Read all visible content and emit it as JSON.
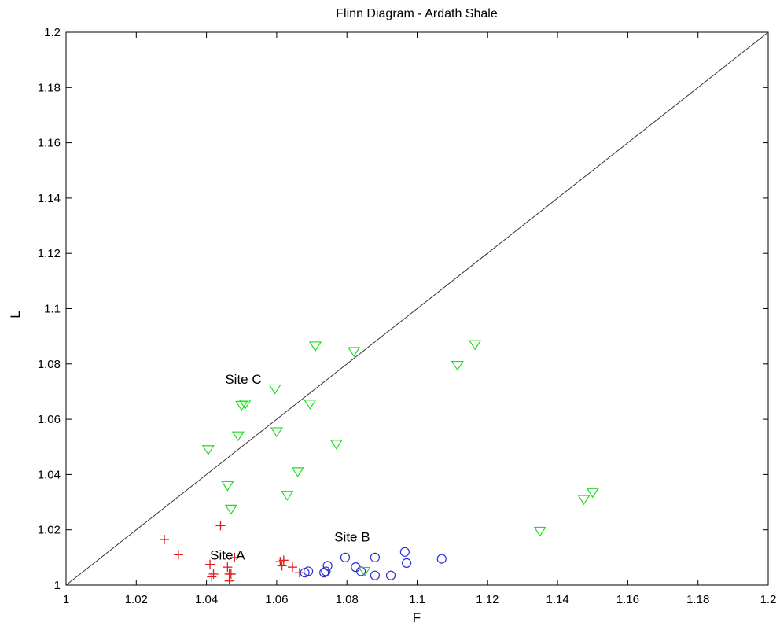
{
  "chart_data": {
    "type": "scatter",
    "title": "Flinn Diagram - Ardath Shale",
    "xlabel": "F",
    "ylabel": "L",
    "xlim": [
      1,
      1.2
    ],
    "ylim": [
      1,
      1.2
    ],
    "xticks": [
      "1",
      "1.02",
      "1.04",
      "1.06",
      "1.08",
      "1.1",
      "1.12",
      "1.14",
      "1.16",
      "1.18",
      "1.2"
    ],
    "yticks": [
      "1",
      "1.02",
      "1.04",
      "1.06",
      "1.08",
      "1.1",
      "1.12",
      "1.14",
      "1.16",
      "1.18",
      "1.2"
    ],
    "reference_line": {
      "x": [
        1,
        1.2
      ],
      "y": [
        1,
        1.2
      ],
      "color": "#333333"
    },
    "annotations": [
      {
        "text": "Site A",
        "x": 1.046,
        "y": 1.011
      },
      {
        "text": "Site B",
        "x": 1.0815,
        "y": 1.0175
      },
      {
        "text": "Site C",
        "x": 1.0505,
        "y": 1.0745
      }
    ],
    "series": [
      {
        "marker": "plus",
        "color": "#e8191b",
        "points": [
          [
            1.028,
            1.0165
          ],
          [
            1.032,
            1.011
          ],
          [
            1.044,
            1.0215
          ],
          [
            1.048,
            1.01
          ],
          [
            1.041,
            1.0075
          ],
          [
            1.0415,
            1.003
          ],
          [
            1.042,
            1.004
          ],
          [
            1.046,
            1.0065
          ],
          [
            1.0465,
            1.004
          ],
          [
            1.047,
            1.004
          ],
          [
            1.0465,
            1.0015
          ],
          [
            1.061,
            1.0085
          ],
          [
            1.062,
            1.009
          ],
          [
            1.0615,
            1.007
          ],
          [
            1.0645,
            1.0065
          ],
          [
            1.0665,
            1.0045
          ]
        ]
      },
      {
        "marker": "circle",
        "color": "#2b2bd6",
        "points": [
          [
            1.068,
            1.0045
          ],
          [
            1.069,
            1.005
          ],
          [
            1.0735,
            1.0045
          ],
          [
            1.074,
            1.005
          ],
          [
            1.0745,
            1.007
          ],
          [
            1.0795,
            1.01
          ],
          [
            1.0825,
            1.0065
          ],
          [
            1.084,
            1.005
          ],
          [
            1.088,
            1.0035
          ],
          [
            1.088,
            1.01
          ],
          [
            1.0925,
            1.0035
          ],
          [
            1.0965,
            1.012
          ],
          [
            1.097,
            1.008
          ],
          [
            1.107,
            1.0095
          ]
        ]
      },
      {
        "marker": "triangle-down",
        "color": "#22dd22",
        "points": [
          [
            1.071,
            1.0865
          ],
          [
            1.082,
            1.0845
          ],
          [
            1.0595,
            1.071
          ],
          [
            1.05,
            1.065
          ],
          [
            1.051,
            1.0655
          ],
          [
            1.0695,
            1.0655
          ],
          [
            1.06,
            1.0555
          ],
          [
            1.049,
            1.054
          ],
          [
            1.0405,
            1.049
          ],
          [
            1.077,
            1.051
          ],
          [
            1.1115,
            1.0795
          ],
          [
            1.1165,
            1.087
          ],
          [
            1.066,
            1.041
          ],
          [
            1.046,
            1.036
          ],
          [
            1.063,
            1.0325
          ],
          [
            1.047,
            1.0275
          ],
          [
            1.085,
            1.005
          ],
          [
            1.135,
            1.0195
          ],
          [
            1.1475,
            1.031
          ],
          [
            1.15,
            1.0335
          ]
        ]
      }
    ]
  }
}
